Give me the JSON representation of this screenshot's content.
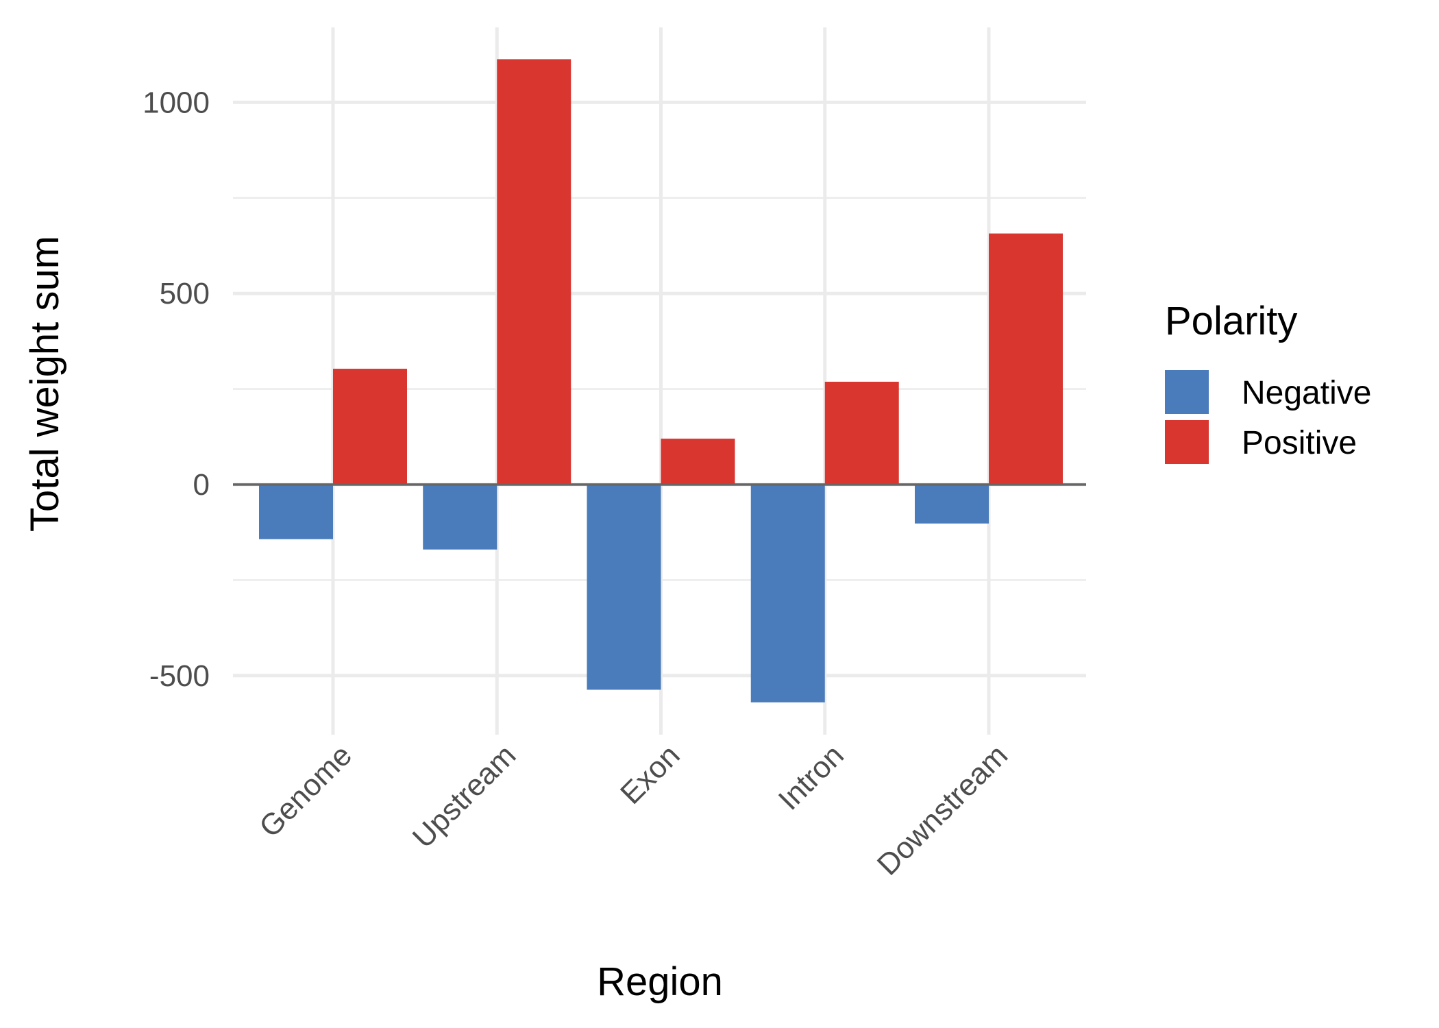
{
  "chart_data": {
    "type": "bar",
    "categories": [
      "Genome",
      "Upstream",
      "Exon",
      "Intron",
      "Downstream"
    ],
    "series": [
      {
        "name": "Negative",
        "values": [
          -143,
          -170,
          -537,
          -570,
          -102
        ],
        "color": "#4a7bba"
      },
      {
        "name": "Positive",
        "values": [
          303,
          1113,
          120,
          269,
          657
        ],
        "color": "#d93630"
      }
    ],
    "xlabel": "Region",
    "ylabel": "Total weight sum",
    "ylim": [
      -650,
      1200
    ],
    "yticks": [
      -500,
      0,
      500,
      1000
    ],
    "ytick_labels": [
      "-500",
      "0",
      "500",
      "1000"
    ],
    "legend": {
      "title": "Polarity",
      "position": "right"
    },
    "grid": true,
    "baseline": 0
  }
}
